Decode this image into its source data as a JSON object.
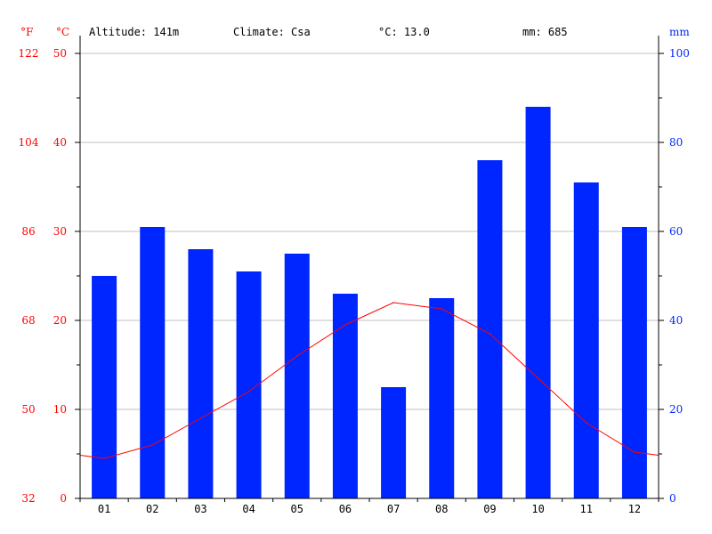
{
  "header": {
    "unit_f": "°F",
    "unit_c": "°C",
    "unit_mm": "mm",
    "altitude": "Altitude: 141m",
    "climate": "Climate: Csa",
    "avg_temp": "°C: 13.0",
    "precip_total": "mm: 685"
  },
  "colors": {
    "temperature": "#ff0000",
    "precipitation": "#0026ff",
    "grid": "#c0c0c0",
    "axis": "#000000"
  },
  "chart_data": {
    "type": "bar",
    "categories": [
      "01",
      "02",
      "03",
      "04",
      "05",
      "06",
      "07",
      "08",
      "09",
      "10",
      "11",
      "12"
    ],
    "series": [
      {
        "type": "bar",
        "axis": "right",
        "unit": "mm",
        "values": [
          50,
          61,
          56,
          51,
          55,
          46,
          25,
          45,
          76,
          88,
          71,
          61
        ]
      },
      {
        "type": "line",
        "axis": "left",
        "unit": "°C",
        "values": [
          4.5,
          6.0,
          9.0,
          12.0,
          16.0,
          19.5,
          22.0,
          21.3,
          18.5,
          13.5,
          8.5,
          5.2
        ]
      }
    ],
    "y_left": {
      "min": 0,
      "max": 50,
      "ticks": [
        0,
        10,
        20,
        30,
        40,
        50
      ]
    },
    "y_left_f_ticks": [
      "32",
      "50",
      "68",
      "86",
      "104",
      "122"
    ],
    "y_right": {
      "min": 0,
      "max": 100,
      "ticks": [
        0,
        20,
        40,
        60,
        80,
        100
      ]
    },
    "grid": true
  }
}
